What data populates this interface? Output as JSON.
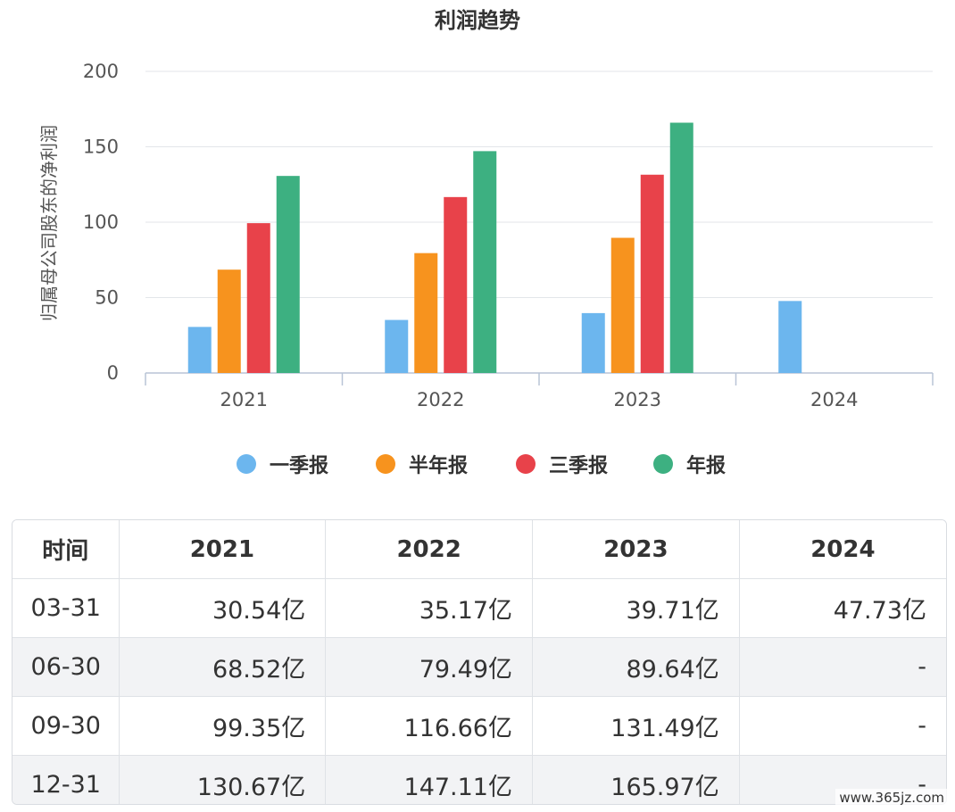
{
  "chart_data": {
    "type": "bar",
    "title": "利润趋势",
    "ylabel": "归属母公司股东的净利润",
    "xlabel": "",
    "ylim": [
      0,
      200
    ],
    "yticks": [
      0,
      50,
      100,
      150,
      200
    ],
    "grid": true,
    "legend_position": "bottom",
    "categories": [
      "2021",
      "2022",
      "2023",
      "2024"
    ],
    "series": [
      {
        "name": "一季报",
        "color": "#6cb6ee",
        "values": [
          30.54,
          35.17,
          39.71,
          47.73
        ]
      },
      {
        "name": "半年报",
        "color": "#f7931e",
        "values": [
          68.52,
          79.49,
          89.64,
          null
        ]
      },
      {
        "name": "三季报",
        "color": "#e8424a",
        "values": [
          99.35,
          116.66,
          131.49,
          null
        ]
      },
      {
        "name": "年报",
        "color": "#3db081",
        "values": [
          130.67,
          147.11,
          165.97,
          null
        ]
      }
    ]
  },
  "table": {
    "header": [
      "时间",
      "2021",
      "2022",
      "2023",
      "2024"
    ],
    "rows": [
      [
        "03-31",
        "30.54亿",
        "35.17亿",
        "39.71亿",
        "47.73亿"
      ],
      [
        "06-30",
        "68.52亿",
        "79.49亿",
        "89.64亿",
        "-"
      ],
      [
        "09-30",
        "99.35亿",
        "116.66亿",
        "131.49亿",
        "-"
      ],
      [
        "12-31",
        "130.67亿",
        "147.11亿",
        "165.97亿",
        "-"
      ]
    ]
  },
  "watermark": "www.365jz.com"
}
